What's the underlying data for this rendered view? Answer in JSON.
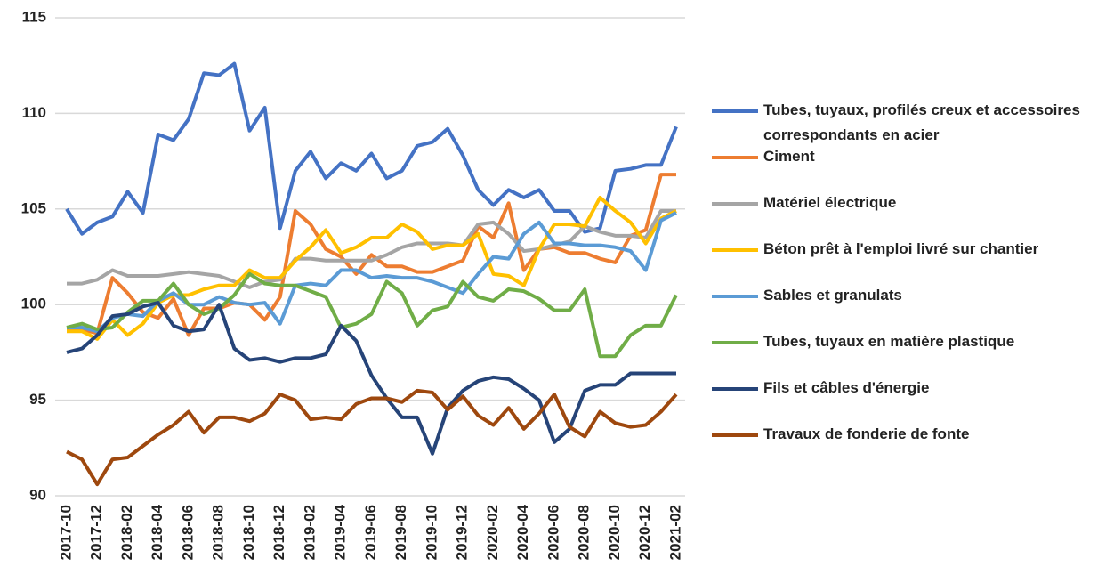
{
  "chart_data": {
    "type": "line",
    "categories": [
      "2017-10",
      null,
      "2017-12",
      null,
      "2018-02",
      null,
      "2018-04",
      null,
      "2018-06",
      null,
      "2018-08",
      null,
      "2018-10",
      null,
      "2018-12",
      null,
      "2019-02",
      null,
      "2019-04",
      null,
      "2019-06",
      null,
      "2019-08",
      null,
      "2019-10",
      null,
      "2019-12",
      null,
      "2020-02",
      null,
      "2020-04",
      null,
      "2020-06",
      null,
      "2020-08",
      null,
      "2020-10",
      null,
      "2020-12",
      null,
      "2021-02"
    ],
    "ylim": [
      90,
      115
    ],
    "yticks": [
      90,
      95,
      100,
      105,
      110,
      115
    ],
    "grid": true,
    "legend": "right",
    "series": [
      {
        "name": "Tubes, tuyaux, profilés creux et accessoires correspondants en acier",
        "color": "#4472c4",
        "values": [
          105,
          103.7,
          104.3,
          104.6,
          105.9,
          104.8,
          108.9,
          108.6,
          109.7,
          112.1,
          112,
          112.6,
          109.1,
          110.3,
          104,
          107,
          108,
          106.6,
          107.4,
          107,
          107.9,
          106.6,
          107,
          108.3,
          108.5,
          109.2,
          107.8,
          106,
          105.2,
          106,
          105.6,
          106,
          104.9,
          104.9,
          103.8,
          104,
          107,
          107.1,
          107.3,
          107.3,
          109.3
        ]
      },
      {
        "name": "Ciment",
        "color": "#ed7d31",
        "values": [
          98.7,
          98.7,
          98.5,
          101.4,
          100.6,
          99.6,
          99.3,
          100.3,
          98.4,
          99.8,
          99.8,
          100.1,
          100,
          99.2,
          100.4,
          104.9,
          104.2,
          102.9,
          102.5,
          101.6,
          102.6,
          102,
          102,
          101.7,
          101.7,
          102,
          102.3,
          104.1,
          103.5,
          105.3,
          101.8,
          102.9,
          103,
          102.7,
          102.7,
          102.4,
          102.2,
          103.6,
          103.9,
          106.8,
          106.8
        ]
      },
      {
        "name": "Matériel électrique",
        "color": "#a5a5a5",
        "values": [
          101.1,
          101.1,
          101.3,
          101.8,
          101.5,
          101.5,
          101.5,
          101.6,
          101.7,
          101.6,
          101.5,
          101.2,
          100.9,
          101.2,
          101.3,
          102.4,
          102.4,
          102.3,
          102.3,
          102.3,
          102.3,
          102.6,
          103,
          103.2,
          103.2,
          103.2,
          103.1,
          104.2,
          104.3,
          103.7,
          102.8,
          102.9,
          103.1,
          103.3,
          104.1,
          103.8,
          103.6,
          103.6,
          103.5,
          104.9,
          104.9
        ]
      },
      {
        "name": "Béton prêt à l'emploi livré sur chantier",
        "color": "#ffc000",
        "values": [
          98.6,
          98.6,
          98.2,
          99.2,
          98.4,
          99,
          100.1,
          100.5,
          100.5,
          100.8,
          101,
          101,
          101.8,
          101.4,
          101.4,
          102.3,
          103,
          103.9,
          102.7,
          103,
          103.5,
          103.5,
          104.2,
          103.8,
          102.9,
          103.1,
          103.1,
          103.7,
          101.6,
          101.5,
          101,
          102.9,
          104.2,
          104.2,
          104.1,
          105.6,
          104.9,
          104.3,
          103.2,
          104.5,
          104.9
        ]
      },
      {
        "name": "Sables et granulats",
        "color": "#5b9bd5",
        "values": [
          98.8,
          98.8,
          98.6,
          99.3,
          99.5,
          99.4,
          100.2,
          100.6,
          100,
          100,
          100.4,
          100.1,
          100,
          100.1,
          99,
          101,
          101.1,
          101,
          101.8,
          101.8,
          101.4,
          101.5,
          101.4,
          101.4,
          101.2,
          100.9,
          100.6,
          101.6,
          102.5,
          102.4,
          103.7,
          104.3,
          103.2,
          103.2,
          103.1,
          103.1,
          103,
          102.8,
          101.8,
          104.4,
          104.8
        ]
      },
      {
        "name": "Tubes, tuyaux en matière plastique",
        "color": "#70ad47",
        "values": [
          98.8,
          99,
          98.7,
          98.8,
          99.6,
          100.2,
          100.2,
          101.1,
          100,
          99.5,
          99.8,
          100.5,
          101.6,
          101.1,
          101,
          101,
          100.7,
          100.4,
          98.8,
          99,
          99.5,
          101.2,
          100.6,
          98.9,
          99.7,
          99.9,
          101.2,
          100.4,
          100.2,
          100.8,
          100.7,
          100.3,
          99.7,
          99.7,
          100.8,
          97.3,
          97.3,
          98.4,
          98.9,
          98.9,
          100.5
        ]
      },
      {
        "name": "Fils et câbles d'énergie",
        "color": "#264478",
        "values": [
          97.5,
          97.7,
          98.4,
          99.4,
          99.5,
          99.9,
          100.1,
          98.9,
          98.6,
          98.7,
          100,
          97.7,
          97.1,
          97.2,
          97,
          97.2,
          97.2,
          97.4,
          98.9,
          98.1,
          96.3,
          95.1,
          94.1,
          94.1,
          92.2,
          94.6,
          95.5,
          96,
          96.2,
          96.1,
          95.6,
          95,
          92.8,
          93.5,
          95.5,
          95.8,
          95.8,
          96.4,
          96.4,
          96.4,
          96.4
        ]
      },
      {
        "name": "Travaux de fonderie de fonte",
        "color": "#9e480e",
        "values": [
          92.3,
          91.9,
          90.6,
          91.9,
          92,
          92.6,
          93.2,
          93.7,
          94.4,
          93.3,
          94.1,
          94.1,
          93.9,
          94.3,
          95.3,
          95,
          94,
          94.1,
          94,
          94.8,
          95.1,
          95.1,
          94.9,
          95.5,
          95.4,
          94.5,
          95.2,
          94.2,
          93.7,
          94.6,
          93.5,
          94.3,
          95.3,
          93.6,
          93.1,
          94.4,
          93.8,
          93.6,
          93.7,
          94.4,
          95.3
        ]
      }
    ]
  }
}
